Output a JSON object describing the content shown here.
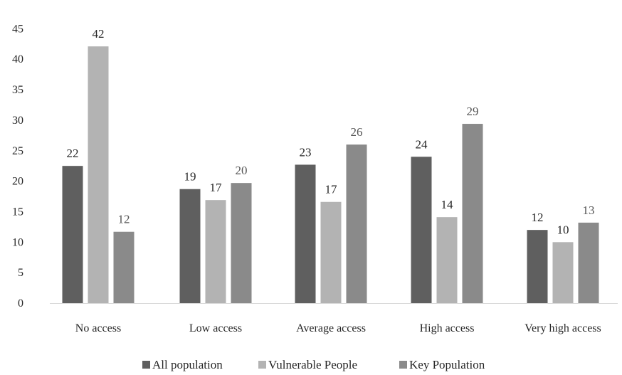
{
  "chart_data": {
    "type": "bar",
    "categories": [
      "No access",
      "Low access",
      "Average access",
      "High access",
      "Very high access"
    ],
    "series": [
      {
        "name": "All population",
        "color": "#5f5f5f",
        "label_color": "#262626",
        "values": [
          22.5,
          18.7,
          22.7,
          24.0,
          12.0
        ],
        "labels": [
          "22",
          "19",
          "23",
          "24",
          "12"
        ]
      },
      {
        "name": "Vulnerable People",
        "color": "#b3b3b3",
        "label_color": "#262626",
        "values": [
          42.1,
          16.9,
          16.6,
          14.1,
          10.0
        ],
        "labels": [
          "42",
          "17",
          "17",
          "14",
          "10"
        ]
      },
      {
        "name": "Key Population",
        "color": "#8a8a8a",
        "label_color": "#555555",
        "values": [
          11.7,
          19.7,
          26.0,
          29.4,
          13.2
        ],
        "labels": [
          "12",
          "20",
          "26",
          "29",
          "13"
        ]
      }
    ],
    "yticks": [
      "0",
      "5",
      "10",
      "15",
      "20",
      "25",
      "30",
      "35",
      "40",
      "45"
    ],
    "ylim": [
      0,
      45
    ],
    "grid": false,
    "legend_position": "bottom-center",
    "title": "",
    "xlabel": "",
    "ylabel": ""
  }
}
